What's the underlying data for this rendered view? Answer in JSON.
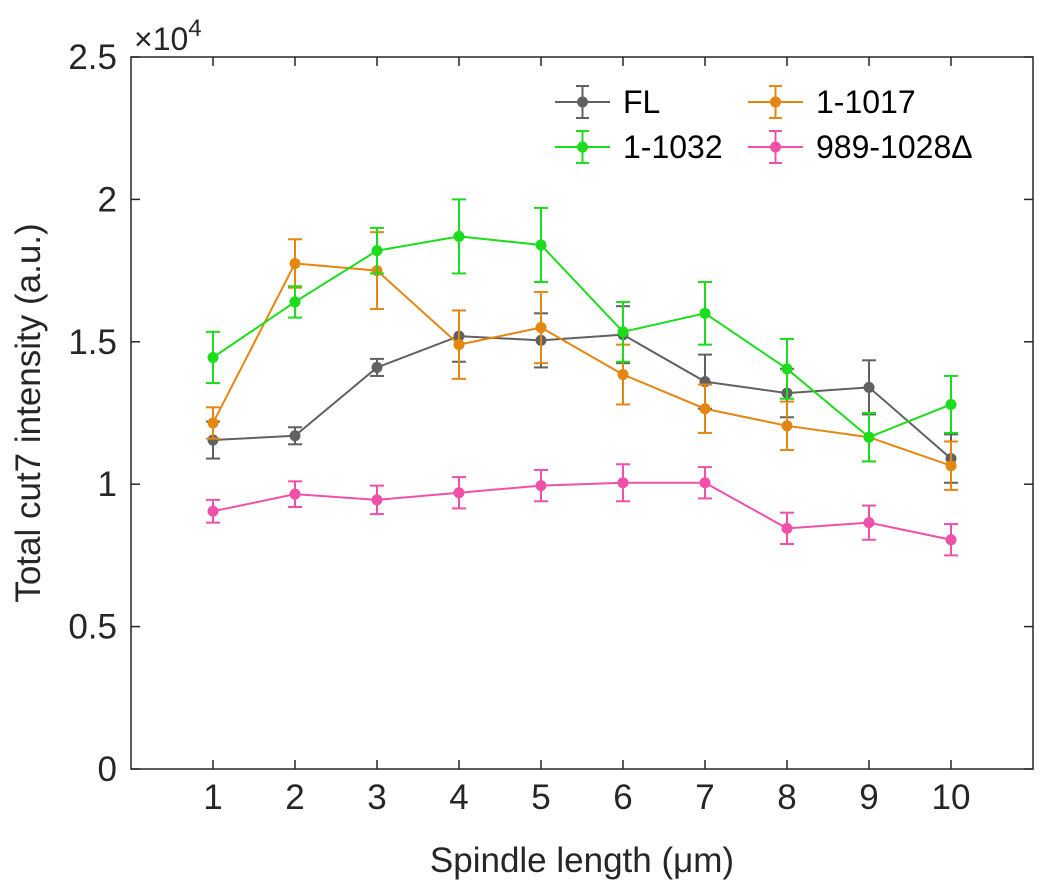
{
  "chart_data": {
    "type": "line",
    "xlabel": "Spindle length (μm)",
    "ylabel": "Total cut7 intensity (a.u.)",
    "y_multiplier": {
      "prefix": "×10",
      "exponent": "4"
    },
    "x": [
      1,
      2,
      3,
      4,
      5,
      6,
      7,
      8,
      9,
      10
    ],
    "xlim": [
      0,
      11
    ],
    "ylim": [
      0,
      2.5
    ],
    "x_ticks": [
      "1",
      "2",
      "3",
      "4",
      "5",
      "6",
      "7",
      "8",
      "9",
      "10"
    ],
    "y_ticks": [
      "0",
      "0.5",
      "1",
      "1.5",
      "2",
      "2.5"
    ],
    "y_tick_values": [
      0,
      0.5,
      1,
      1.5,
      2,
      2.5
    ],
    "grid": false,
    "legend_position": "top-right",
    "series": [
      {
        "name": "FL",
        "color": "#616161",
        "values": [
          1.155,
          1.17,
          1.41,
          1.52,
          1.505,
          1.525,
          1.36,
          1.32,
          1.34,
          1.09
        ],
        "errors": [
          0.065,
          0.03,
          0.03,
          0.09,
          0.095,
          0.1,
          0.095,
          0.085,
          0.095,
          0.085
        ]
      },
      {
        "name": "1-1017",
        "color": "#E58610",
        "values": [
          1.215,
          1.775,
          1.75,
          1.49,
          1.55,
          1.385,
          1.265,
          1.205,
          1.165,
          1.065
        ],
        "errors": [
          0.055,
          0.085,
          0.135,
          0.12,
          0.125,
          0.105,
          0.085,
          0.085,
          0.085,
          0.085
        ]
      },
      {
        "name": "1-1032",
        "color": "#1BDD1B",
        "values": [
          1.445,
          1.64,
          1.82,
          1.87,
          1.84,
          1.535,
          1.6,
          1.405,
          1.165,
          1.28
        ],
        "errors": [
          0.09,
          0.055,
          0.08,
          0.13,
          0.13,
          0.105,
          0.11,
          0.105,
          0.085,
          0.1
        ]
      },
      {
        "name": "989-1028Δ",
        "color": "#F050A8",
        "values": [
          0.905,
          0.965,
          0.945,
          0.97,
          0.995,
          1.005,
          1.005,
          0.845,
          0.865,
          0.805
        ],
        "errors": [
          0.04,
          0.045,
          0.05,
          0.055,
          0.055,
          0.065,
          0.055,
          0.055,
          0.06,
          0.055
        ]
      }
    ]
  }
}
